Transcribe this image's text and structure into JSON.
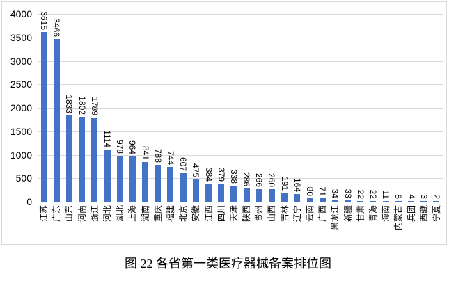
{
  "figure": {
    "caption": "图 22 各省第一类医疗器械备案排位图"
  },
  "chart_data": {
    "type": "bar",
    "title": "",
    "xlabel": "",
    "ylabel": "",
    "categories": [
      "江苏",
      "广东",
      "山东",
      "河南",
      "浙江",
      "河北",
      "湖北",
      "上海",
      "湖南",
      "重庆",
      "福建",
      "北京",
      "安徽",
      "江西",
      "四川",
      "天津",
      "陕西",
      "贵州",
      "山西",
      "吉林",
      "辽宁",
      "云南",
      "广西",
      "黑龙江",
      "新疆",
      "甘肃",
      "青海",
      "海南",
      "内蒙古",
      "兵团",
      "西藏",
      "宁夏"
    ],
    "values": [
      3615,
      3466,
      1833,
      1802,
      1789,
      1114,
      978,
      964,
      841,
      788,
      744,
      607,
      475,
      384,
      379,
      338,
      286,
      266,
      260,
      191,
      164,
      80,
      71,
      34,
      33,
      22,
      22,
      11,
      8,
      4,
      3,
      2
    ],
    "yticks": [
      0,
      500,
      1000,
      1500,
      2000,
      2500,
      3000,
      3500,
      4000
    ],
    "ylim": [
      0,
      4000
    ],
    "grid": true,
    "legend_position": "none",
    "data_labels": true,
    "value_label_rotation_deg": 90,
    "category_label_rotation_deg": -90,
    "bar_color": "#4472C4",
    "gridline_color": "#D9D9D9",
    "axis_line_color": "#BFBFBF",
    "chart_border_color": "#D9D9D9",
    "text_color": "#000000"
  }
}
